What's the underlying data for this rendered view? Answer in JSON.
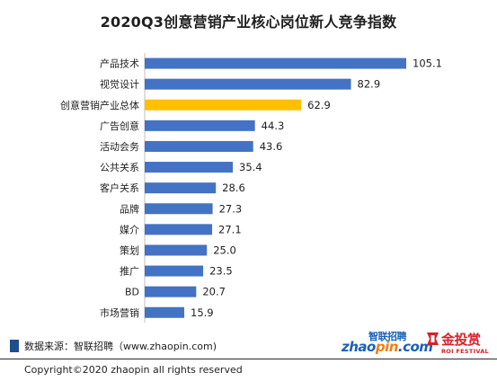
{
  "chart_data": {
    "type": "bar",
    "orientation": "horizontal",
    "title": "2020Q3创意营销产业核心岗位新人竞争指数",
    "xlabel": "",
    "ylabel": "",
    "categories": [
      "产品技术",
      "视觉设计",
      "创意营销产业总体",
      "广告创意",
      "活动会务",
      "公共关系",
      "客户关系",
      "品牌",
      "媒介",
      "策划",
      "推广",
      "BD",
      "市场营销"
    ],
    "values": [
      105.1,
      82.9,
      62.9,
      44.3,
      43.6,
      35.4,
      28.6,
      27.3,
      27.1,
      25.0,
      23.5,
      20.7,
      15.9
    ],
    "value_labels": [
      "105.1",
      "82.9",
      "62.9",
      "44.3",
      "43.6",
      "35.4",
      "28.6",
      "27.3",
      "27.1",
      "25.0",
      "23.5",
      "20.7",
      "15.9"
    ],
    "highlight_category": "创意营销产业总体",
    "xlim": [
      0,
      110
    ],
    "grid": false,
    "legend": "none",
    "colors": {
      "bar": "#4472c4",
      "highlight": "#ffc000"
    }
  },
  "footer": {
    "source": "数据来源：智联招聘（www.zhaopin.com)",
    "copyright": "Copyright©2020 zhaopin all rights reserved"
  },
  "logos": {
    "zhaopin": {
      "cn": "智联招聘",
      "en_prefix": "zhao",
      "en_dot": "pin",
      "en_suffix": ".com"
    },
    "roi": {
      "cn": "金投赏",
      "en": "ROI FESTIVAL"
    }
  },
  "colors": {
    "source_square": "#1f4e8c",
    "zhaopin_blue": "#1a60b8",
    "zhaopin_orange": "#f07f16",
    "roi_red": "#d6202a"
  }
}
